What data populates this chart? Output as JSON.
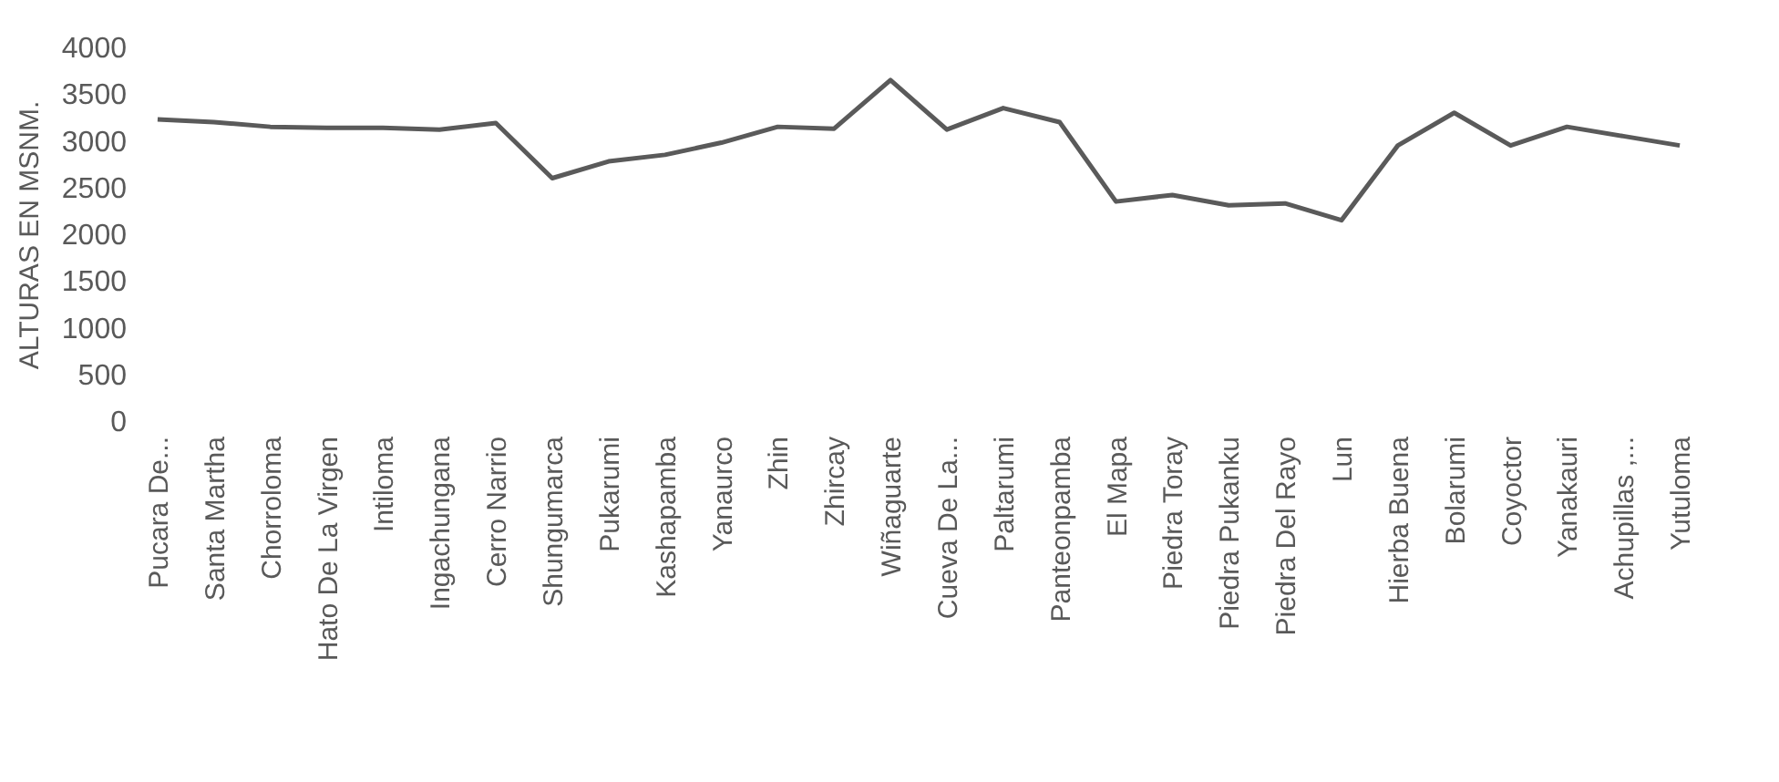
{
  "chart_data": {
    "type": "line",
    "ylabel": "ALTURAS EN MSNM.",
    "categories": [
      "Pucara De...",
      "Santa Martha",
      "Chorroloma",
      "Hato De La Virgen",
      "Intiloma",
      "Ingachungana",
      "Cerro Narrio",
      "Shungumarca",
      "Pukarumi",
      "Kashapamba",
      "Yanaurco",
      "Zhin",
      "Zhircay",
      "Wiñaguarte",
      "Cueva De La...",
      "Paltarumi",
      "Panteonpamba",
      "El Mapa",
      "Piedra Toray",
      "Piedra Pukanku",
      "Piedra Del Rayo",
      "Lun",
      "Hierba Buena",
      "Bolarumi",
      "Coyoctor",
      "Yanakauri",
      "Achupillas ,...",
      "Yutuloma"
    ],
    "series": [
      {
        "color": "#5a5a5a",
        "values": [
          3230,
          3200,
          3150,
          3140,
          3140,
          3120,
          3190,
          2600,
          2780,
          2850,
          2980,
          3150,
          3130,
          3650,
          3120,
          3350,
          3200,
          2350,
          2420,
          2310,
          2330,
          2150,
          2950,
          3300,
          2950,
          3150,
          3050,
          2950
        ]
      }
    ],
    "ylim": [
      0,
      4000
    ],
    "yticks": [
      0,
      500,
      1000,
      1500,
      2000,
      2500,
      3000,
      3500,
      4000
    ],
    "grid": false,
    "marker": "none",
    "line_style": "solid"
  }
}
